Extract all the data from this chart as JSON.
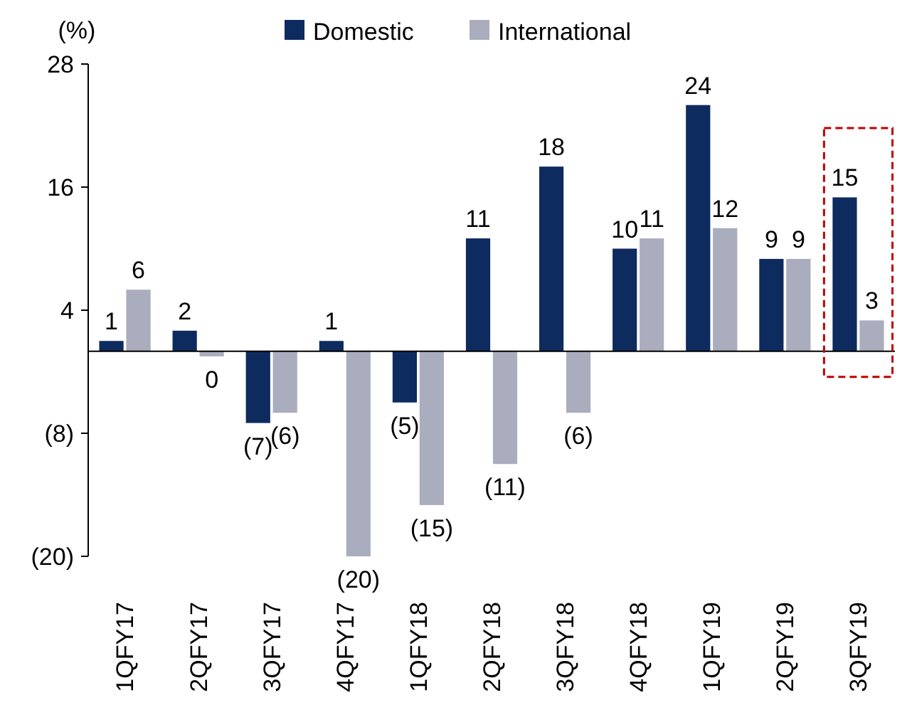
{
  "chart_data": {
    "type": "bar",
    "ylabel": "(%)",
    "categories": [
      "1QFY17",
      "2QFY17",
      "3QFY17",
      "4QFY17",
      "1QFY18",
      "2QFY18",
      "3QFY18",
      "4QFY18",
      "1QFY19",
      "2QFY19",
      "3QFY19"
    ],
    "series": [
      {
        "name": "Domestic",
        "color": "#0d2b5e",
        "values": [
          1,
          2,
          -7,
          1,
          -5,
          11,
          18,
          10,
          24,
          9,
          15
        ],
        "value_labels": [
          "1",
          "2",
          "(7)",
          "1",
          "(5)",
          "11",
          "18",
          "10",
          "24",
          "9",
          "15"
        ]
      },
      {
        "name": "International",
        "color": "#a9adbd",
        "values": [
          6,
          -0.5,
          -6,
          -20,
          -15,
          -11,
          -6,
          11,
          12,
          9,
          3
        ],
        "value_labels": [
          "6",
          "0",
          "(6)",
          "(20)",
          "(15)",
          "(11)",
          "(6)",
          "11",
          "12",
          "9",
          "3"
        ]
      }
    ],
    "ylim": [
      -20,
      28
    ],
    "yticks": [
      {
        "value": -20,
        "label": "(20)"
      },
      {
        "value": -8,
        "label": "(8)"
      },
      4,
      16,
      28
    ],
    "legend": "top"
  }
}
